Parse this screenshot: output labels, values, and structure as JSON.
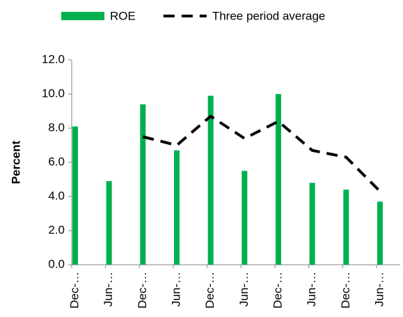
{
  "chart_data": {
    "type": "bar_line",
    "categories": [
      "Dec-…",
      "Jun-…",
      "Dec-…",
      "Jun-…",
      "Dec-…",
      "Jun-…",
      "Dec-…",
      "Jun-…",
      "Dec-…",
      "Jun-…"
    ],
    "series": [
      {
        "name": "ROE",
        "color": "#00b050",
        "type": "bar",
        "values": [
          8.1,
          4.9,
          9.4,
          6.7,
          9.9,
          5.5,
          10.0,
          4.8,
          4.4,
          3.7
        ]
      },
      {
        "name": "Three period average",
        "color": "#000000",
        "type": "line",
        "values": [
          null,
          null,
          7.5,
          7.0,
          8.7,
          7.4,
          8.4,
          6.7,
          6.3,
          4.3
        ]
      }
    ],
    "y_label": "Percent",
    "ylim": [
      0,
      12
    ],
    "yticks": [
      {
        "value": 0,
        "label": "0.0"
      },
      {
        "value": 2,
        "label": "2.0"
      },
      {
        "value": 4,
        "label": "4.0"
      },
      {
        "value": 6,
        "label": "6.0"
      },
      {
        "value": 8,
        "label": "8.0"
      },
      {
        "value": 10,
        "label": "10.0"
      },
      {
        "value": 12,
        "label": "12.0"
      }
    ],
    "grid": false,
    "legend": "top"
  }
}
